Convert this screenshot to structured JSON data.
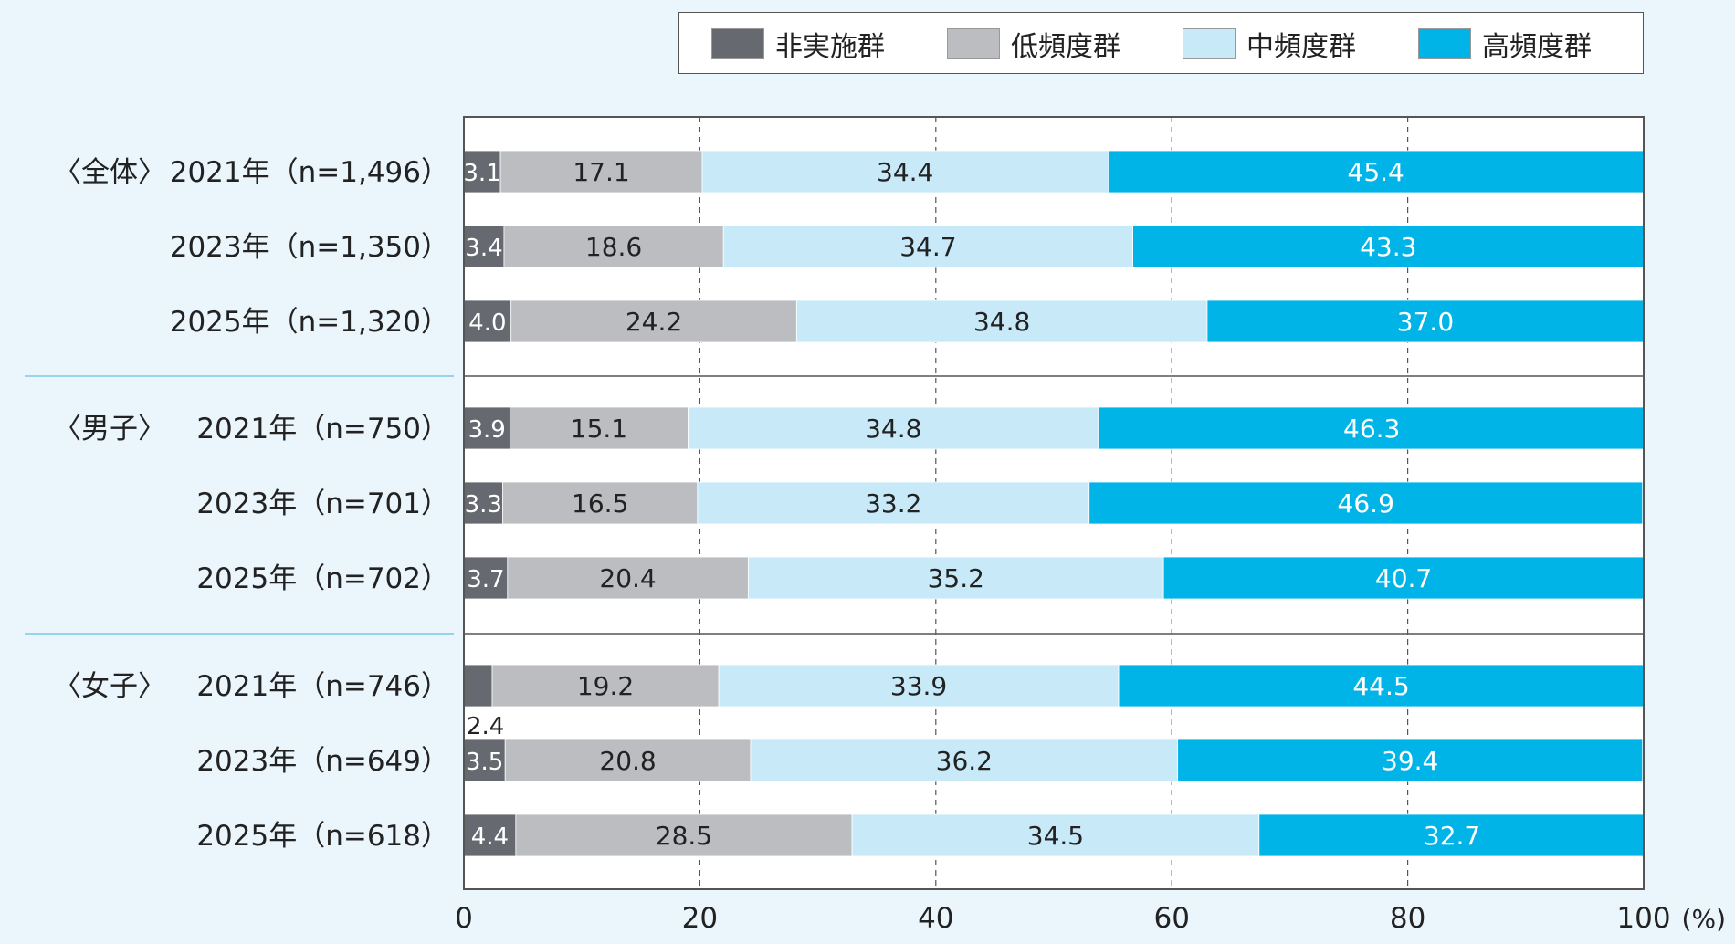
{
  "chart_data": {
    "type": "bar",
    "orientation": "horizontal",
    "stacked": true,
    "legend_position": "top-right",
    "grid": true,
    "xlim": [
      0,
      100
    ],
    "x_ticks": [
      "0",
      "20",
      "40",
      "60",
      "80",
      "100"
    ],
    "x_unit": "(%)",
    "series": [
      {
        "name": "非実施群",
        "color": "#666a70",
        "label_color": "#ffffff"
      },
      {
        "name": "低頻度群",
        "color": "#bcbdc1",
        "label_color": "#222222"
      },
      {
        "name": "中頻度群",
        "color": "#c7e9f8",
        "label_color": "#222222"
      },
      {
        "name": "高頻度群",
        "color": "#00b4e8",
        "label_color": "#ffffff"
      }
    ],
    "groups": [
      {
        "name": "〈全体〉",
        "rows": [
          {
            "label": "2021年（n=1,496）",
            "values": [
              3.1,
              17.1,
              34.4,
              45.4
            ]
          },
          {
            "label": "2023年（n=1,350）",
            "values": [
              3.4,
              18.6,
              34.7,
              43.3
            ]
          },
          {
            "label": "2025年（n=1,320）",
            "values": [
              4.0,
              24.2,
              34.8,
              37.0
            ]
          }
        ]
      },
      {
        "name": "〈男子〉",
        "rows": [
          {
            "label": "2021年（n=750）",
            "values": [
              3.9,
              15.1,
              34.8,
              46.3
            ]
          },
          {
            "label": "2023年（n=701）",
            "values": [
              3.3,
              16.5,
              33.2,
              46.9
            ]
          },
          {
            "label": "2025年（n=702）",
            "values": [
              3.7,
              20.4,
              35.2,
              40.7
            ]
          }
        ]
      },
      {
        "name": "〈女子〉",
        "rows": [
          {
            "label": "2021年（n=746）",
            "values": [
              2.4,
              19.2,
              33.9,
              44.5
            ],
            "outside_label_first": true
          },
          {
            "label": "2023年（n=649）",
            "values": [
              3.5,
              20.8,
              36.2,
              39.4
            ]
          },
          {
            "label": "2025年（n=618）",
            "values": [
              4.4,
              28.5,
              34.5,
              32.7
            ]
          }
        ]
      }
    ]
  }
}
